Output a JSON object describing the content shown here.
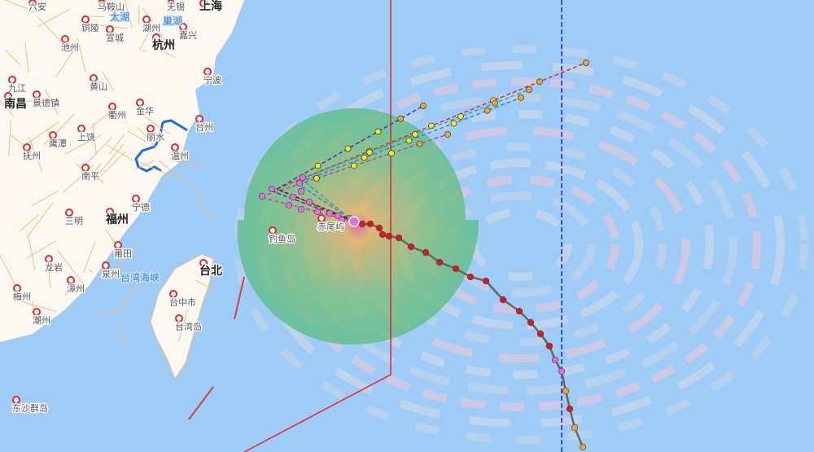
{
  "map": {
    "cities": [
      "六安",
      "马鞍山",
      "无锡",
      "上海",
      "铜陵",
      "宣城",
      "湖州",
      "嘉兴",
      "池州",
      "杭州",
      "宁波",
      "九江",
      "南昌",
      "黄山",
      "景德镇",
      "衢州",
      "金华",
      "丽水",
      "上饶",
      "鹰潭",
      "抚州",
      "温州",
      "台州",
      "南平",
      "宁德",
      "三明",
      "福州",
      "莆田",
      "龙岩",
      "泉州",
      "漳州",
      "梅州",
      "潮州",
      "台北",
      "台中市",
      "台湾岛",
      "钓鱼岛",
      "赤尾屿",
      "东沙群岛"
    ],
    "water_labels": [
      "巢湖",
      "太湖",
      "台湾海峡"
    ],
    "colors": {
      "land": "#fdf9f0",
      "sea": "#9fcbf7",
      "road": "#f3bd86",
      "past_track": "#666666",
      "warning_line_24h": "#e8262b",
      "warning_line_48h": "#2222dd",
      "wind_circle": "#5ec27a"
    },
    "forecast_agencies_colors": [
      "#e8262b",
      "#5a2ca8",
      "#1f8fd6",
      "#2ca9a0",
      "#d04090"
    ]
  }
}
